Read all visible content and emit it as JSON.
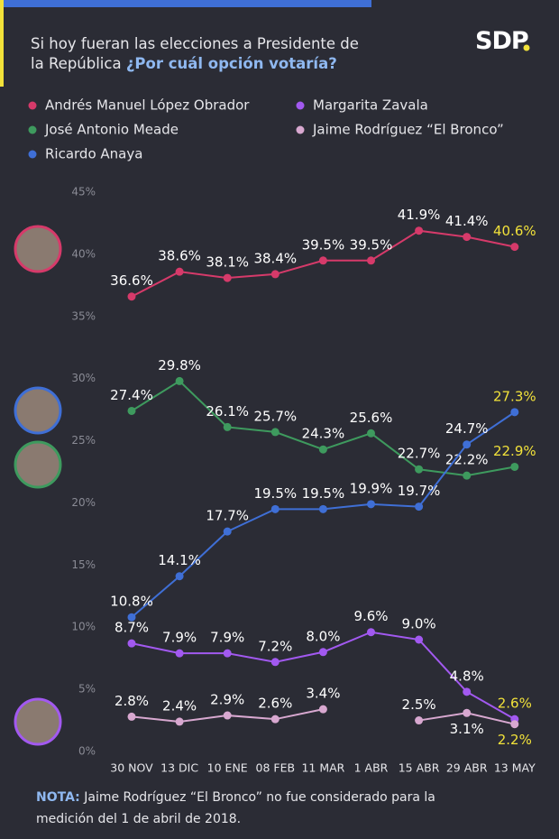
{
  "chart_data": {
    "type": "line",
    "title": "Si hoy fueran las elecciones a Presidente de la República",
    "title_highlight": "¿Por cuál opción votaría?",
    "logo": "SDP",
    "categories": [
      "30 NOV",
      "13 DIC",
      "10 ENE",
      "08 FEB",
      "11 MAR",
      "1 ABR",
      "15 ABR",
      "29 ABR",
      "13 MAY"
    ],
    "series": [
      {
        "name": "Andrés Manuel López Obrador",
        "color": "#d63a6a",
        "values": [
          36.6,
          38.6,
          38.1,
          38.4,
          39.5,
          39.5,
          41.9,
          41.4,
          40.6
        ],
        "value_labels": [
          "36.6%",
          "38.6%",
          "38.1%",
          "38.4%",
          "39.5%",
          "39.5%",
          "41.9%",
          "41.4%",
          "40.6%"
        ]
      },
      {
        "name": "José Antonio Meade",
        "color": "#3e9a5e",
        "values": [
          27.4,
          29.8,
          26.1,
          25.7,
          24.3,
          25.6,
          22.7,
          22.2,
          22.9
        ],
        "value_labels": [
          "27.4%",
          "29.8%",
          "26.1%",
          "25.7%",
          "24.3%",
          "25.6%",
          "22.7%",
          "22.2%",
          "22.9%"
        ]
      },
      {
        "name": "Ricardo Anaya",
        "color": "#3f6fd6",
        "values": [
          10.8,
          14.1,
          17.7,
          19.5,
          19.5,
          19.9,
          19.7,
          24.7,
          27.3
        ],
        "value_labels": [
          "10.8%",
          "14.1%",
          "17.7%",
          "19.5%",
          "19.5%",
          "19.9%",
          "19.7%",
          "24.7%",
          "27.3%"
        ]
      },
      {
        "name": "Margarita Zavala",
        "color": "#a259f0",
        "values": [
          8.7,
          7.9,
          7.9,
          7.2,
          8.0,
          9.6,
          9.0,
          4.8,
          2.6
        ],
        "value_labels": [
          "8.7%",
          "7.9%",
          "7.9%",
          "7.2%",
          "8.0%",
          "9.6%",
          "9.0%",
          "4.8%",
          "2.6%"
        ]
      },
      {
        "name": "Jaime Rodríguez “El Bronco”",
        "color": "#d8a8d0",
        "values": [
          2.8,
          2.4,
          2.9,
          2.6,
          3.4,
          null,
          2.5,
          3.1,
          2.2
        ],
        "value_labels": [
          "2.8%",
          "2.4%",
          "2.9%",
          "2.6%",
          "3.4%",
          null,
          "2.5%",
          "3.1%",
          "2.2%"
        ]
      }
    ],
    "ylim": [
      0,
      45
    ],
    "yticks": [
      {
        "value": 0,
        "label": "0%"
      },
      {
        "value": 5,
        "label": "5%"
      },
      {
        "value": 10,
        "label": "10%"
      },
      {
        "value": 15,
        "label": "15%"
      },
      {
        "value": 20,
        "label": "20%"
      },
      {
        "value": 25,
        "label": "25%"
      },
      {
        "value": 30,
        "label": "30%"
      },
      {
        "value": 35,
        "label": "35%"
      },
      {
        "value": 40,
        "label": "40%"
      },
      {
        "value": 45,
        "label": "45%"
      }
    ],
    "grid": false,
    "highlight_color": "#f2e23a",
    "note_label": "NOTA:",
    "note": "Jaime Rodríguez “El Bronco” no fue considerado para la medición del 1 de abril de 2018."
  }
}
